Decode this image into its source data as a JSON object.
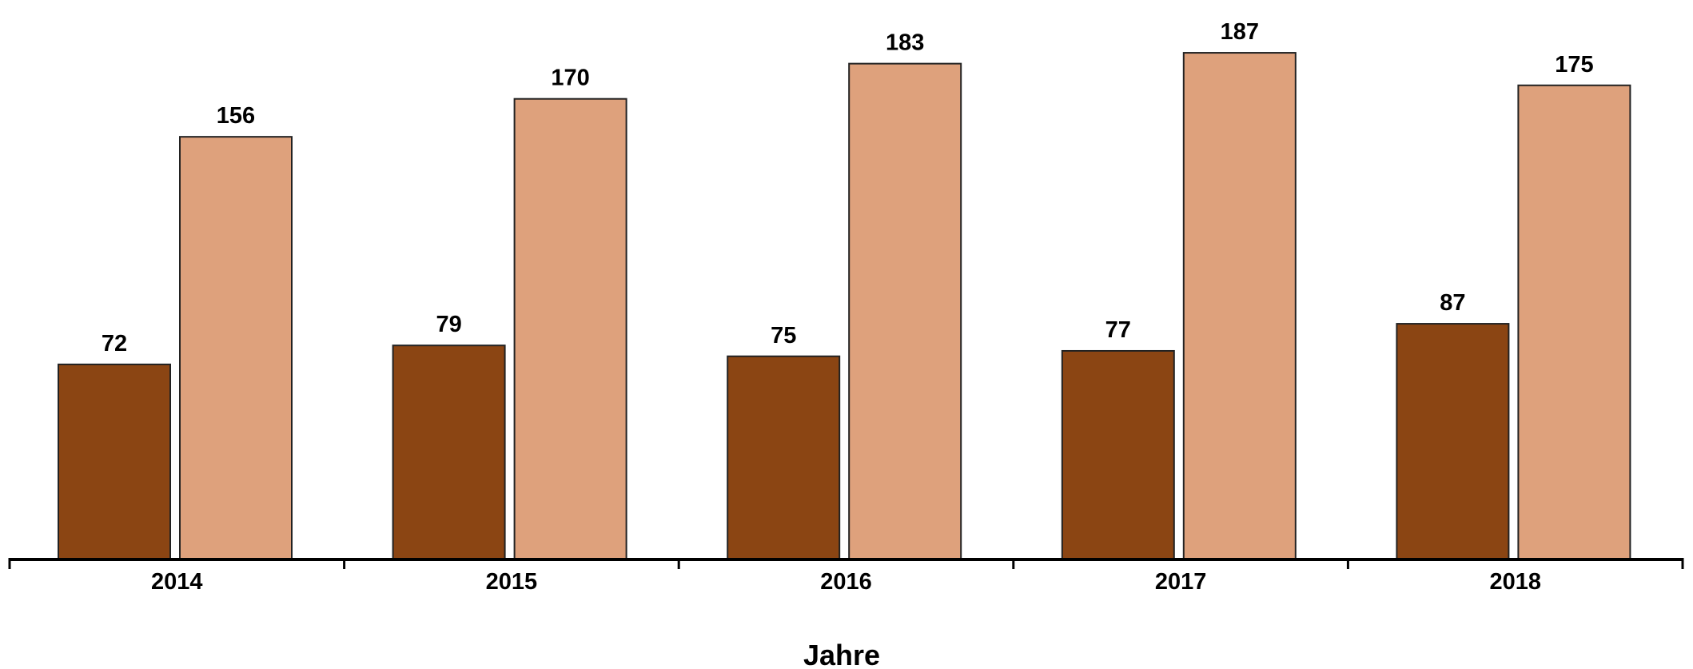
{
  "chart_data": {
    "type": "bar",
    "title": "",
    "xlabel": "Jahre",
    "ylabel": "",
    "categories": [
      "2014",
      "2015",
      "2016",
      "2017",
      "2018"
    ],
    "series": [
      {
        "values": [
          72,
          79,
          75,
          77,
          87
        ],
        "color": "#8b4513"
      },
      {
        "values": [
          156,
          170,
          183,
          187,
          175
        ],
        "color": "#dea17c"
      }
    ],
    "ylim": [
      0,
      200
    ],
    "grid": false,
    "legend": "none",
    "bar_outline_color": "#222222",
    "axis_color": "#000000",
    "data_labels": true
  }
}
